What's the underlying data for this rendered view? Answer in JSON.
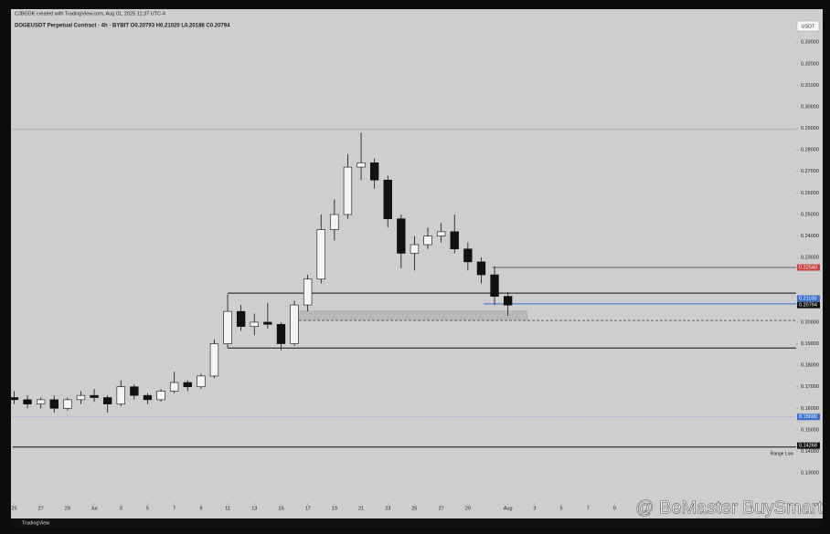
{
  "chart_data": {
    "type": "candlestick",
    "header": "CJBGDK created with TradingView.com, Aug 01, 2025 11:37 UTC-4",
    "title": "DOGEUSDT Perpetual Contract · 4h · BYBIT  O0.20793  H0.21020  L0.20188  C0.20794",
    "currency": "USDT",
    "footer": "TradingView",
    "watermark": "@ BeMaster BuySmart",
    "up_color": "#f4f4f4",
    "down_color": "#111111",
    "x": [
      0,
      1,
      2,
      3,
      4,
      5,
      6,
      7,
      8,
      9,
      10,
      11,
      12,
      13,
      14,
      15,
      16,
      17,
      18,
      19,
      20,
      21,
      22,
      23,
      24,
      25,
      26,
      27,
      28,
      29,
      30,
      31,
      32,
      33,
      34,
      35,
      36,
      37
    ],
    "open": [
      0.165,
      0.164,
      0.162,
      0.164,
      0.16,
      0.164,
      0.166,
      0.165,
      0.162,
      0.17,
      0.166,
      0.164,
      0.168,
      0.172,
      0.17,
      0.175,
      0.19,
      0.205,
      0.198,
      0.2,
      0.199,
      0.19,
      0.208,
      0.22,
      0.243,
      0.25,
      0.272,
      0.274,
      0.266,
      0.248,
      0.232,
      0.236,
      0.24,
      0.242,
      0.234,
      0.228,
      0.222,
      0.212
    ],
    "high": [
      0.168,
      0.166,
      0.165,
      0.166,
      0.165,
      0.168,
      0.169,
      0.166,
      0.173,
      0.171,
      0.167,
      0.169,
      0.177,
      0.173,
      0.176,
      0.192,
      0.213,
      0.208,
      0.204,
      0.209,
      0.2,
      0.21,
      0.222,
      0.25,
      0.257,
      0.278,
      0.288,
      0.276,
      0.268,
      0.25,
      0.24,
      0.244,
      0.246,
      0.25,
      0.237,
      0.23,
      0.226,
      0.214
    ],
    "low": [
      0.162,
      0.16,
      0.16,
      0.158,
      0.159,
      0.162,
      0.163,
      0.158,
      0.161,
      0.164,
      0.162,
      0.163,
      0.167,
      0.168,
      0.169,
      0.174,
      0.188,
      0.196,
      0.194,
      0.197,
      0.187,
      0.189,
      0.205,
      0.218,
      0.238,
      0.248,
      0.266,
      0.262,
      0.244,
      0.225,
      0.224,
      0.234,
      0.237,
      0.232,
      0.224,
      0.218,
      0.208,
      0.203
    ],
    "close": [
      0.164,
      0.162,
      0.164,
      0.16,
      0.164,
      0.166,
      0.165,
      0.162,
      0.17,
      0.166,
      0.164,
      0.168,
      0.172,
      0.17,
      0.175,
      0.19,
      0.205,
      0.198,
      0.2,
      0.199,
      0.19,
      0.208,
      0.22,
      0.243,
      0.25,
      0.272,
      0.274,
      0.266,
      0.248,
      0.232,
      0.236,
      0.24,
      0.242,
      0.234,
      0.228,
      0.222,
      0.212,
      0.20794
    ],
    "xlim": [
      -0.1,
      58.6
    ],
    "xticks": [
      {
        "value": 0,
        "label": "25"
      },
      {
        "value": 2,
        "label": "27"
      },
      {
        "value": 4,
        "label": "29"
      },
      {
        "value": 6,
        "label": "Jul"
      },
      {
        "value": 8,
        "label": "3"
      },
      {
        "value": 10,
        "label": "5"
      },
      {
        "value": 12,
        "label": "7"
      },
      {
        "value": 14,
        "label": "9"
      },
      {
        "value": 16,
        "label": "11"
      },
      {
        "value": 18,
        "label": "13"
      },
      {
        "value": 20,
        "label": "15"
      },
      {
        "value": 22,
        "label": "17"
      },
      {
        "value": 24,
        "label": "19"
      },
      {
        "value": 26,
        "label": "21"
      },
      {
        "value": 28,
        "label": "23"
      },
      {
        "value": 30,
        "label": "25"
      },
      {
        "value": 32,
        "label": "27"
      },
      {
        "value": 34,
        "label": "29"
      },
      {
        "value": 37,
        "label": "Aug"
      },
      {
        "value": 39,
        "label": "3"
      },
      {
        "value": 41,
        "label": "5"
      },
      {
        "value": 43,
        "label": "7"
      },
      {
        "value": 45,
        "label": "9"
      }
    ],
    "ylim": [
      0.1186,
      0.339
    ],
    "yticks": [
      {
        "value": 0.13,
        "label": "0.13000"
      },
      {
        "value": 0.14,
        "label": "0.14000"
      },
      {
        "value": 0.15,
        "label": "0.15000"
      },
      {
        "value": 0.16,
        "label": "0.16000"
      },
      {
        "value": 0.17,
        "label": "0.17000"
      },
      {
        "value": 0.18,
        "label": "0.18000"
      },
      {
        "value": 0.19,
        "label": "0.19000"
      },
      {
        "value": 0.2,
        "label": "0.20000"
      },
      {
        "value": 0.23,
        "label": "0.23000"
      },
      {
        "value": 0.24,
        "label": "0.24000"
      },
      {
        "value": 0.25,
        "label": "0.25000"
      },
      {
        "value": 0.26,
        "label": "0.26000"
      },
      {
        "value": 0.27,
        "label": "0.27000"
      },
      {
        "value": 0.28,
        "label": "0.28000"
      },
      {
        "value": 0.29,
        "label": "0.29000"
      },
      {
        "value": 0.3,
        "label": "0.30000"
      },
      {
        "value": 0.31,
        "label": "0.31000"
      },
      {
        "value": 0.32,
        "label": "0.32000"
      },
      {
        "value": 0.33,
        "label": "0.33000"
      }
    ],
    "levels": [
      {
        "value": 0.2895,
        "from": -0.1,
        "color": "#a8a8a8",
        "style": "solid"
      },
      {
        "value": 0.2135,
        "from": 16,
        "color": "#111111",
        "style": "solid"
      },
      {
        "value": 0.188,
        "from": 16,
        "color": "#111111",
        "style": "solid"
      },
      {
        "value": 0.2008,
        "from": 21,
        "color": "#555555",
        "style": "dashed"
      },
      {
        "value": 0.2254,
        "from": 35.8,
        "color": "#666666",
        "style": "solid"
      },
      {
        "value": 0.2085,
        "from": 35.2,
        "color": "#3a6fd0",
        "style": "solid"
      },
      {
        "value": 0.156,
        "from": -0.1,
        "color": "#6f8fd8",
        "style": "dotted"
      },
      {
        "value": 0.142,
        "from": -0.1,
        "color": "#111111",
        "style": "solid"
      }
    ],
    "zone": {
      "low": 0.2008,
      "high": 0.2055,
      "from": 21,
      "to": 38.5,
      "color": "#b8b8b8"
    },
    "badges": [
      {
        "value": 0.2254,
        "label": "0.22540",
        "color": "#c84040"
      },
      {
        "value": 0.211,
        "label": "0.21100",
        "color": "#3a6fd0"
      },
      {
        "value": 0.20794,
        "label": "0.20794",
        "color": "#111111"
      },
      {
        "value": 0.156,
        "label": "0.15600",
        "color": "#3a6fd0"
      },
      {
        "value": 0.14268,
        "label": "0.14268",
        "color": "#111111"
      }
    ],
    "annotation": {
      "value": 0.1405,
      "text": "Range Low"
    }
  }
}
